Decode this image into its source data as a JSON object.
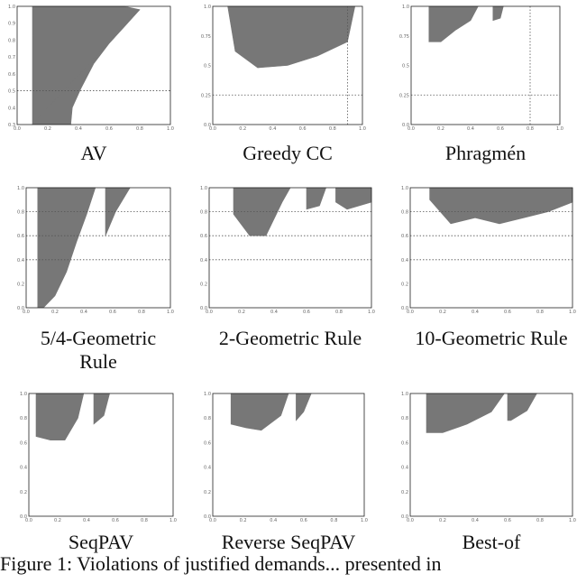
{
  "figure_caption": "Figure 1: Violations of justified demands... presented in",
  "chart_data": [
    {
      "type": "scatter",
      "caption": "AV",
      "color": "#777777",
      "xlim": [
        0,
        1
      ],
      "ylim": [
        0.3,
        1.0
      ],
      "hlines": [
        0.5
      ],
      "xticks": [
        "0.0",
        "0.2",
        "0.4",
        "0.6",
        "0.8",
        "1.0"
      ],
      "yticks": [
        "0.3",
        "0.4",
        "0.5",
        "0.6",
        "0.7",
        "0.8",
        "0.9",
        "1.0"
      ],
      "regions": [
        {
          "x": [
            0.1,
            0.1,
            0.2,
            0.3,
            0.4,
            0.5,
            0.6,
            0.7,
            0.8
          ],
          "y": [
            0.3,
            1.0,
            1.0,
            1.0,
            1.0,
            1.0,
            1.0,
            1.0,
            0.98
          ]
        },
        {
          "x": [
            0.8,
            0.7,
            0.6,
            0.5,
            0.42,
            0.36,
            0.35,
            0.1
          ],
          "y": [
            0.98,
            0.88,
            0.78,
            0.66,
            0.52,
            0.4,
            0.3,
            0.3
          ]
        }
      ]
    },
    {
      "type": "scatter",
      "caption": "Greedy CC",
      "color": "#777777",
      "xlim": [
        0,
        1
      ],
      "ylim": [
        0.0,
        1.0
      ],
      "hlines": [
        0.25
      ],
      "vlines": [
        0.9
      ],
      "xticks": [
        "0.0",
        "0.2",
        "0.4",
        "0.6",
        "0.8",
        "1.0"
      ],
      "yticks": [
        "0.0",
        "0.25",
        "0.5",
        "0.75",
        "1.0"
      ],
      "regions": [
        {
          "x": [
            0.1,
            0.2,
            0.4,
            0.6,
            0.8,
            0.95,
            0.9,
            0.7,
            0.5,
            0.3,
            0.15
          ],
          "y": [
            1.0,
            1.0,
            1.0,
            1.0,
            1.0,
            1.0,
            0.7,
            0.58,
            0.5,
            0.48,
            0.62
          ]
        }
      ]
    },
    {
      "type": "scatter",
      "caption": "Phragmén",
      "color": "#777777",
      "xlim": [
        0,
        1
      ],
      "ylim": [
        0.0,
        1.0
      ],
      "hlines": [
        0.25
      ],
      "vlines": [
        0.8
      ],
      "xticks": [
        "0.0",
        "0.2",
        "0.4",
        "0.6",
        "0.8",
        "1.0"
      ],
      "yticks": [
        "0.0",
        "0.25",
        "0.5",
        "0.75",
        "1.0"
      ],
      "regions": [
        {
          "x": [
            0.12,
            0.12,
            0.45,
            0.4,
            0.3,
            0.2
          ],
          "y": [
            0.7,
            1.0,
            1.0,
            0.88,
            0.8,
            0.7
          ]
        },
        {
          "x": [
            0.55,
            0.55,
            0.62,
            0.6
          ],
          "y": [
            0.88,
            1.0,
            1.0,
            0.9
          ]
        }
      ]
    },
    {
      "type": "scatter",
      "caption": "5/4-Geometric Rule",
      "color": "#777777",
      "xlim": [
        0,
        1
      ],
      "ylim": [
        0.0,
        1.0
      ],
      "hlines": [
        0.8,
        0.6,
        0.4
      ],
      "xticks": [
        "0.0",
        "0.2",
        "0.4",
        "0.6",
        "0.8",
        "1.0"
      ],
      "yticks": [
        "0.0",
        "0.2",
        "0.4",
        "0.6",
        "0.8",
        "1.0"
      ],
      "regions": [
        {
          "x": [
            0.08,
            0.08,
            0.48,
            0.42,
            0.35,
            0.28,
            0.2,
            0.12
          ],
          "y": [
            0.0,
            1.0,
            1.0,
            0.78,
            0.55,
            0.3,
            0.1,
            0.0
          ]
        },
        {
          "x": [
            0.55,
            0.55,
            0.72,
            0.62
          ],
          "y": [
            0.6,
            1.0,
            1.0,
            0.8
          ]
        }
      ]
    },
    {
      "type": "scatter",
      "caption": "2-Geometric Rule",
      "color": "#777777",
      "xlim": [
        0,
        1
      ],
      "ylim": [
        0.0,
        1.0
      ],
      "hlines": [
        0.8,
        0.6,
        0.4
      ],
      "xticks": [
        "0.0",
        "0.2",
        "0.4",
        "0.6",
        "0.8",
        "1.0"
      ],
      "yticks": [
        "0.0",
        "0.2",
        "0.4",
        "0.6",
        "0.8",
        "1.0"
      ],
      "regions": [
        {
          "x": [
            0.15,
            0.15,
            0.5,
            0.45,
            0.35,
            0.25
          ],
          "y": [
            0.78,
            1.0,
            1.0,
            0.88,
            0.6,
            0.6
          ]
        },
        {
          "x": [
            0.6,
            0.6,
            0.72,
            0.68
          ],
          "y": [
            0.82,
            1.0,
            1.0,
            0.85
          ]
        },
        {
          "x": [
            0.78,
            0.78,
            1.05,
            1.0,
            0.85
          ],
          "y": [
            0.88,
            1.0,
            1.0,
            0.88,
            0.82
          ]
        }
      ]
    },
    {
      "type": "scatter",
      "caption": "10-Geometric Rule",
      "color": "#777777",
      "xlim": [
        0,
        1
      ],
      "ylim": [
        0.0,
        1.0
      ],
      "hlines": [
        0.8,
        0.6,
        0.4
      ],
      "xticks": [
        "0.0",
        "0.2",
        "0.4",
        "0.6",
        "0.8",
        "1.0"
      ],
      "yticks": [
        "0.0",
        "0.2",
        "0.4",
        "0.6",
        "0.8",
        "1.0"
      ],
      "regions": [
        {
          "x": [
            0.12,
            0.12,
            1.05,
            1.0,
            0.85,
            0.7,
            0.55,
            0.4,
            0.25
          ],
          "y": [
            0.9,
            1.0,
            1.0,
            0.88,
            0.8,
            0.75,
            0.7,
            0.75,
            0.7
          ]
        }
      ]
    },
    {
      "type": "scatter",
      "caption": "SeqPAV",
      "color": "#777777",
      "xlim": [
        0,
        1
      ],
      "ylim": [
        0.0,
        1.0
      ],
      "xticks": [
        "0.0",
        "0.2",
        "0.4",
        "0.6",
        "0.8",
        "1.0"
      ],
      "yticks": [
        "0.0",
        "0.2",
        "0.4",
        "0.6",
        "0.8",
        "1.0"
      ],
      "regions": [
        {
          "x": [
            0.05,
            0.05,
            0.38,
            0.34,
            0.25,
            0.15
          ],
          "y": [
            0.65,
            1.0,
            1.0,
            0.8,
            0.62,
            0.62
          ]
        },
        {
          "x": [
            0.45,
            0.45,
            0.56,
            0.52
          ],
          "y": [
            0.75,
            1.0,
            1.0,
            0.82
          ]
        }
      ]
    },
    {
      "type": "scatter",
      "caption": "Reverse SeqPAV",
      "color": "#777777",
      "xlim": [
        0,
        1
      ],
      "ylim": [
        0.0,
        1.0
      ],
      "xticks": [
        "0.0",
        "0.2",
        "0.4",
        "0.6",
        "0.8",
        "1.0"
      ],
      "yticks": [
        "0.0",
        "0.2",
        "0.4",
        "0.6",
        "0.8",
        "1.0"
      ],
      "regions": [
        {
          "x": [
            0.12,
            0.12,
            0.5,
            0.45,
            0.32,
            0.22
          ],
          "y": [
            0.75,
            1.0,
            1.0,
            0.82,
            0.7,
            0.72
          ]
        },
        {
          "x": [
            0.55,
            0.55,
            0.65,
            0.6
          ],
          "y": [
            0.78,
            1.0,
            1.0,
            0.85
          ]
        }
      ]
    },
    {
      "type": "scatter",
      "caption": "Best-of",
      "color": "#777777",
      "xlim": [
        0,
        1
      ],
      "ylim": [
        0.0,
        1.0
      ],
      "xticks": [
        "0.0",
        "0.2",
        "0.4",
        "0.6",
        "0.8",
        "1.0"
      ],
      "yticks": [
        "0.0",
        "0.2",
        "0.4",
        "0.6",
        "0.8",
        "1.0"
      ],
      "regions": [
        {
          "x": [
            0.1,
            0.1,
            0.58,
            0.5,
            0.35,
            0.2
          ],
          "y": [
            0.68,
            1.0,
            1.0,
            0.85,
            0.75,
            0.68
          ]
        },
        {
          "x": [
            0.6,
            0.6,
            0.78,
            0.72,
            0.62
          ],
          "y": [
            0.78,
            1.0,
            1.0,
            0.86,
            0.78
          ]
        }
      ]
    }
  ]
}
